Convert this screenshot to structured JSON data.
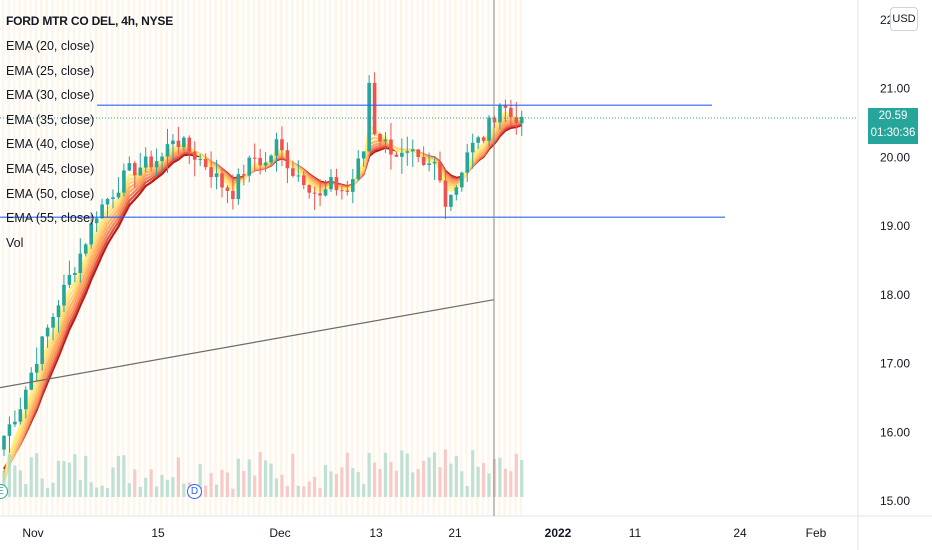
{
  "header": {
    "title": "FORD MTR CO DEL, 4h, NYSE",
    "indicators": [
      "EMA (20, close)",
      "EMA (25, close)",
      "EMA (30, close)",
      "EMA (35, close)",
      "EMA (40, close)",
      "EMA (45, close)",
      "EMA (50, close)",
      "EMA (55, close)",
      "Vol"
    ]
  },
  "currency_button": "USD",
  "last_price": {
    "value": "20.59",
    "countdown": "01:30:36",
    "color": "#26a69a"
  },
  "event_markers": {
    "earnings": "E",
    "dividend": "D"
  },
  "chart_data": {
    "type": "candlestick",
    "symbol": "FORD MTR CO DEL",
    "interval": "4h",
    "exchange": "NYSE",
    "y_axis": {
      "ticks": [
        "15.00",
        "16.00",
        "17.00",
        "18.00",
        "19.00",
        "20.00",
        "21.00",
        "22"
      ],
      "range": [
        14.95,
        22.1
      ]
    },
    "x_axis": {
      "ticks": [
        "Nov",
        "15",
        "Dec",
        "13",
        "21",
        "2022",
        "11",
        "24",
        "Feb"
      ]
    },
    "horizontal_levels": [
      20.76,
      19.13
    ],
    "trendline": {
      "from": [
        "2021-10-27",
        16.65
      ],
      "to": [
        "2021-12-23",
        17.93
      ]
    },
    "last_price": 20.59,
    "price_range_observed": {
      "low": 15.95,
      "high": 21.57
    },
    "ema_periods": [
      20,
      25,
      30,
      35,
      40,
      45,
      50,
      55
    ],
    "ema_colors": [
      "#fff176",
      "#ffe082",
      "#ffcc80",
      "#ffb74d",
      "#ff9f6b",
      "#f4845f",
      "#e0533c",
      "#b71c1c"
    ],
    "candle_colors": {
      "up": "#26a69a",
      "down": "#ef5350"
    },
    "grid": false
  }
}
